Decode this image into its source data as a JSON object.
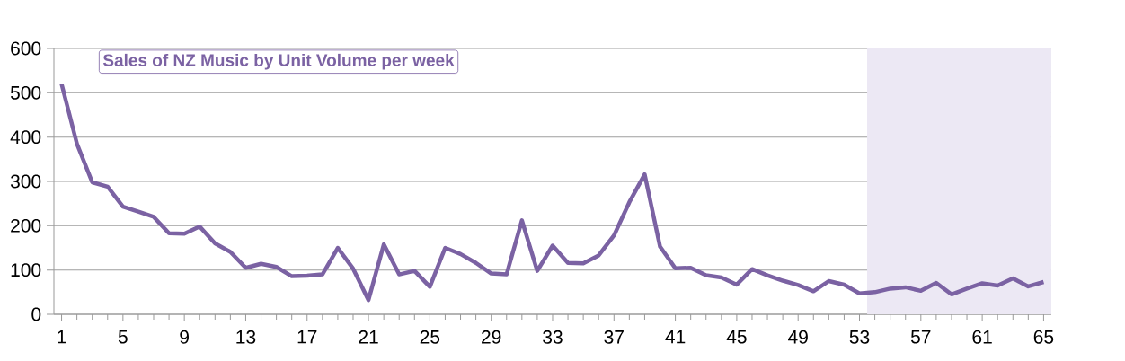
{
  "chart_data": {
    "type": "line",
    "title": "Sales of NZ Music by Unit Volume per week",
    "x": [
      1,
      2,
      3,
      4,
      5,
      6,
      7,
      8,
      9,
      10,
      11,
      12,
      13,
      14,
      15,
      16,
      17,
      18,
      19,
      20,
      21,
      22,
      23,
      24,
      25,
      26,
      27,
      28,
      29,
      30,
      31,
      32,
      33,
      34,
      35,
      36,
      37,
      38,
      39,
      40,
      41,
      42,
      43,
      44,
      45,
      46,
      47,
      48,
      49,
      50,
      51,
      52,
      53,
      54,
      55,
      56,
      57,
      58,
      59,
      60,
      61,
      62,
      63,
      64,
      65
    ],
    "series": [
      {
        "color": "#7b62a3",
        "values": [
          520,
          385,
          298,
          288,
          243,
          232,
          220,
          183,
          182,
          198,
          160,
          141,
          105,
          114,
          107,
          86,
          87,
          90,
          150,
          103,
          32,
          158,
          90,
          98,
          62,
          150,
          136,
          116,
          92,
          90,
          212,
          98,
          155,
          116,
          115,
          133,
          178,
          253,
          316,
          153,
          104,
          105,
          88,
          83,
          67,
          102,
          88,
          76,
          66,
          52,
          75,
          67,
          47,
          50,
          58,
          61,
          53,
          71,
          45,
          58,
          70,
          65,
          81,
          63,
          73
        ]
      }
    ],
    "xlim": [
      0.5,
      65.5
    ],
    "xticks": [
      1,
      5,
      9,
      13,
      17,
      21,
      25,
      29,
      33,
      37,
      41,
      45,
      49,
      53,
      57,
      61,
      65
    ],
    "ylim": [
      0,
      600
    ],
    "yticks": [
      0,
      100,
      200,
      300,
      400,
      500,
      600
    ],
    "grid": "y",
    "marker": "none",
    "line_style": "solid",
    "bands": [
      {
        "axis": "x",
        "from": 53.5,
        "to": 65.5,
        "color": "#ece8f4"
      }
    ]
  }
}
